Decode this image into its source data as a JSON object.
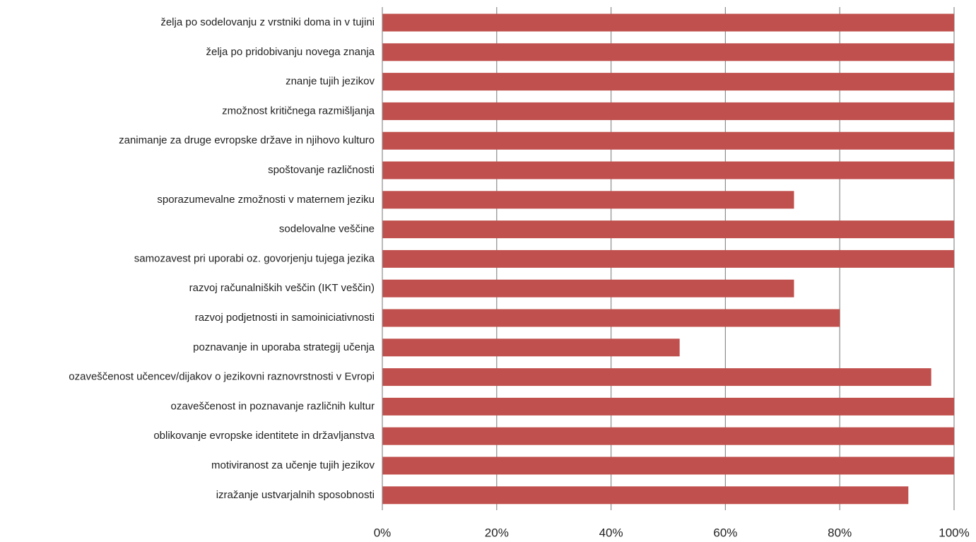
{
  "chart_data": {
    "type": "bar",
    "orientation": "horizontal",
    "title": "",
    "xlabel": "",
    "ylabel": "",
    "categories": [
      "želja po sodelovanju z vrstniki doma in v tujini",
      "želja po pridobivanju novega znanja",
      "znanje tujih jezikov",
      "zmožnost kritičnega razmišljanja",
      "zanimanje za druge evropske države in njihovo kulturo",
      "spoštovanje različnosti",
      "sporazumevalne zmožnosti v maternem jeziku",
      "sodelovalne veščine",
      "samozavest pri uporabi oz. govorjenju tujega jezika",
      "razvoj računalniških veščin (IKT veščin)",
      "razvoj podjetnosti in samoiniciativnosti",
      "poznavanje in uporaba strategij učenja",
      "ozaveščenost učencev/dijakov o jezikovni raznovrstnosti v Evropi",
      "ozaveščenost in poznavanje različnih kultur",
      "oblikovanje evropske identitete in državljanstva",
      "motiviranost za učenje tujih jezikov",
      "izražanje ustvarjalnih sposobnosti"
    ],
    "values": [
      100,
      100,
      100,
      100,
      100,
      100,
      72,
      100,
      100,
      72,
      80,
      52,
      96,
      100,
      100,
      100,
      92
    ],
    "xlim": [
      0,
      100
    ],
    "xticks": [
      0,
      20,
      40,
      60,
      80,
      100
    ],
    "xtick_labels": [
      "0%",
      "20%",
      "40%",
      "60%",
      "80%",
      "100%"
    ],
    "grid": true,
    "legend": "none",
    "bar_color": "#c0504d",
    "grid_color": "#8c8c8c"
  }
}
